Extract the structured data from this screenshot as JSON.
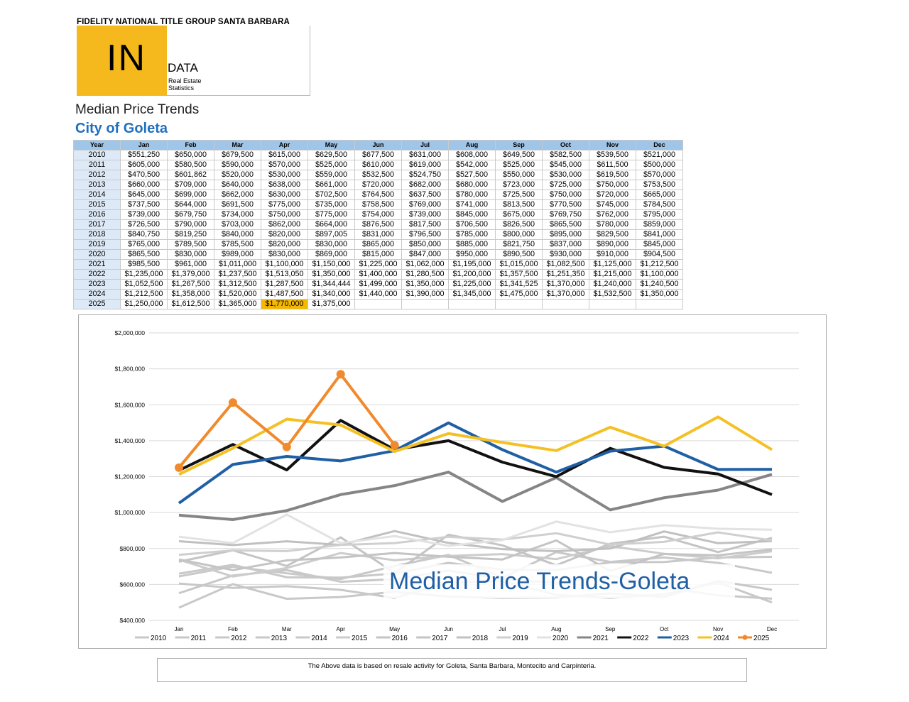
{
  "header": {
    "company": "FIDELITY NATIONAL TITLE GROUP SANTA BARBARA",
    "logo_big": "IN",
    "logo_word": "DATA",
    "logo_line1": "Real Estate",
    "logo_line2": "Statistics",
    "title": "Median Price Trends",
    "subtitle": "City of Goleta"
  },
  "table": {
    "columns": [
      "Year",
      "Jan",
      "Feb",
      "Mar",
      "Apr",
      "May",
      "Jun",
      "Jul",
      "Aug",
      "Sep",
      "Oct",
      "Nov",
      "Dec"
    ],
    "highlight_cell": [
      15,
      4
    ],
    "highlight_color": "#f5b800",
    "rows": [
      [
        "2010",
        "$551,250",
        "$650,000",
        "$679,500",
        "$615,000",
        "$629,500",
        "$677,500",
        "$631,000",
        "$608,000",
        "$649,500",
        "$582,500",
        "$539,500",
        "$521,000"
      ],
      [
        "2011",
        "$605,000",
        "$580,500",
        "$590,000",
        "$570,000",
        "$525,000",
        "$610,000",
        "$619,000",
        "$542,000",
        "$525,000",
        "$545,000",
        "$611,500",
        "$500,000"
      ],
      [
        "2012",
        "$470,500",
        "$601,862",
        "$520,000",
        "$530,000",
        "$559,000",
        "$532,500",
        "$524,750",
        "$527,500",
        "$550,000",
        "$530,000",
        "$619,500",
        "$570,000"
      ],
      [
        "2013",
        "$660,000",
        "$709,000",
        "$640,000",
        "$638,000",
        "$661,000",
        "$720,000",
        "$682,000",
        "$680,000",
        "$723,000",
        "$725,000",
        "$750,000",
        "$753,500"
      ],
      [
        "2014",
        "$645,000",
        "$699,000",
        "$662,000",
        "$630,000",
        "$702,500",
        "$764,500",
        "$637,500",
        "$780,000",
        "$725,500",
        "$750,000",
        "$720,000",
        "$665,000"
      ],
      [
        "2015",
        "$737,500",
        "$644,000",
        "$691,500",
        "$775,000",
        "$735,000",
        "$758,500",
        "$769,000",
        "$741,000",
        "$813,500",
        "$770,500",
        "$745,000",
        "$784,500"
      ],
      [
        "2016",
        "$739,000",
        "$679,750",
        "$734,000",
        "$750,000",
        "$775,000",
        "$754,000",
        "$739,000",
        "$845,000",
        "$675,000",
        "$769,750",
        "$762,000",
        "$795,000"
      ],
      [
        "2017",
        "$726,500",
        "$790,000",
        "$703,000",
        "$862,000",
        "$664,000",
        "$876,500",
        "$817,500",
        "$706,500",
        "$826,500",
        "$865,500",
        "$780,000",
        "$859,000"
      ],
      [
        "2018",
        "$840,750",
        "$819,250",
        "$840,000",
        "$820,000",
        "$897,005",
        "$831,000",
        "$796,500",
        "$785,000",
        "$800,000",
        "$895,000",
        "$829,500",
        "$841,000"
      ],
      [
        "2019",
        "$765,000",
        "$789,500",
        "$785,500",
        "$820,000",
        "$830,000",
        "$865,000",
        "$850,000",
        "$885,000",
        "$821,750",
        "$837,000",
        "$890,000",
        "$845,000"
      ],
      [
        "2020",
        "$865,500",
        "$830,000",
        "$989,000",
        "$830,000",
        "$869,000",
        "$815,000",
        "$847,000",
        "$950,000",
        "$890,500",
        "$930,000",
        "$910,000",
        "$904,500"
      ],
      [
        "2021",
        "$985,500",
        "$961,000",
        "$1,011,000",
        "$1,100,000",
        "$1,150,000",
        "$1,225,000",
        "$1,062,000",
        "$1,195,000",
        "$1,015,000",
        "$1,082,500",
        "$1,125,000",
        "$1,212,500"
      ],
      [
        "2022",
        "$1,235,000",
        "$1,379,000",
        "$1,237,500",
        "$1,513,050",
        "$1,350,000",
        "$1,400,000",
        "$1,280,500",
        "$1,200,000",
        "$1,357,500",
        "$1,251,350",
        "$1,215,000",
        "$1,100,000"
      ],
      [
        "2023",
        "$1,052,500",
        "$1,267,500",
        "$1,312,500",
        "$1,287,500",
        "$1,344,444",
        "$1,499,000",
        "$1,350,000",
        "$1,225,000",
        "$1,341,525",
        "$1,370,000",
        "$1,240,000",
        "$1,240,500"
      ],
      [
        "2024",
        "$1,212,500",
        "$1,358,000",
        "$1,520,000",
        "$1,487,500",
        "$1,340,000",
        "$1,440,000",
        "$1,390,000",
        "$1,345,000",
        "$1,475,000",
        "$1,370,000",
        "$1,532,500",
        "$1,350,000"
      ],
      [
        "2025",
        "$1,250,000",
        "$1,612,500",
        "$1,365,000",
        "$1,770,000",
        "$1,375,000"
      ]
    ]
  },
  "chart_data": {
    "type": "line",
    "annotation": "Median Price Trends-Goleta",
    "categories": [
      "Jan",
      "Feb",
      "Mar",
      "Apr",
      "May",
      "Jun",
      "Jul",
      "Aug",
      "Sep",
      "Oct",
      "Nov",
      "Dec"
    ],
    "ylim": [
      400000,
      2000000
    ],
    "grid": true,
    "yticks": [
      {
        "value": 400000,
        "label": "$400,000"
      },
      {
        "value": 600000,
        "label": "$600,000"
      },
      {
        "value": 800000,
        "label": "$800,000"
      },
      {
        "value": 1000000,
        "label": "$1,000,000"
      },
      {
        "value": 1200000,
        "label": "$1,200,000"
      },
      {
        "value": 1400000,
        "label": "$1,400,000"
      },
      {
        "value": 1600000,
        "label": "$1,600,000"
      },
      {
        "value": 1800000,
        "label": "$1,800,000"
      },
      {
        "value": 2000000,
        "label": "$2,000,000"
      }
    ],
    "legend": "bottom",
    "series": [
      {
        "name": "2010",
        "color": "#c8c8c8",
        "values": [
          551250,
          650000,
          679500,
          615000,
          629500,
          677500,
          631000,
          608000,
          649500,
          582500,
          539500,
          521000
        ]
      },
      {
        "name": "2011",
        "color": "#c8c8c8",
        "values": [
          605000,
          580500,
          590000,
          570000,
          525000,
          610000,
          619000,
          542000,
          525000,
          545000,
          611500,
          500000
        ]
      },
      {
        "name": "2012",
        "color": "#c8c8c8",
        "values": [
          470500,
          601862,
          520000,
          530000,
          559000,
          532500,
          524750,
          527500,
          550000,
          530000,
          619500,
          570000
        ]
      },
      {
        "name": "2013",
        "color": "#c8c8c8",
        "values": [
          660000,
          709000,
          640000,
          638000,
          661000,
          720000,
          682000,
          680000,
          723000,
          725000,
          750000,
          753500
        ]
      },
      {
        "name": "2014",
        "color": "#c8c8c8",
        "values": [
          645000,
          699000,
          662000,
          630000,
          702500,
          764500,
          637500,
          780000,
          725500,
          750000,
          720000,
          665000
        ]
      },
      {
        "name": "2015",
        "color": "#cccccc",
        "values": [
          737500,
          644000,
          691500,
          775000,
          735000,
          758500,
          769000,
          741000,
          813500,
          770500,
          745000,
          784500
        ]
      },
      {
        "name": "2016",
        "color": "#c4c4c4",
        "values": [
          739000,
          679750,
          734000,
          750000,
          775000,
          754000,
          739000,
          845000,
          675000,
          769750,
          762000,
          795000
        ]
      },
      {
        "name": "2017",
        "color": "#c4c4c4",
        "values": [
          726500,
          790000,
          703000,
          862000,
          664000,
          876500,
          817500,
          706500,
          826500,
          865500,
          780000,
          859000
        ]
      },
      {
        "name": "2018",
        "color": "#c0c0c0",
        "values": [
          840750,
          819250,
          840000,
          820000,
          897005,
          831000,
          796500,
          785000,
          800000,
          895000,
          829500,
          841000
        ]
      },
      {
        "name": "2019",
        "color": "#cfcfcf",
        "values": [
          765000,
          789500,
          785500,
          820000,
          830000,
          865000,
          850000,
          885000,
          821750,
          837000,
          890000,
          845000
        ]
      },
      {
        "name": "2020",
        "color": "#e2e2e2",
        "values": [
          865500,
          830000,
          989000,
          830000,
          869000,
          815000,
          847000,
          950000,
          890500,
          930000,
          910000,
          904500
        ]
      },
      {
        "name": "2021",
        "color": "#858585",
        "values": [
          985500,
          961000,
          1011000,
          1100000,
          1150000,
          1225000,
          1062000,
          1195000,
          1015000,
          1082500,
          1125000,
          1212500
        ]
      },
      {
        "name": "2022",
        "color": "#111111",
        "values": [
          1235000,
          1379000,
          1237500,
          1513050,
          1350000,
          1400000,
          1280500,
          1200000,
          1357500,
          1251350,
          1215000,
          1100000
        ]
      },
      {
        "name": "2023",
        "color": "#1f5fa5",
        "values": [
          1052500,
          1267500,
          1312500,
          1287500,
          1344444,
          1499000,
          1350000,
          1225000,
          1341525,
          1370000,
          1240000,
          1240500
        ]
      },
      {
        "name": "2024",
        "color": "#f5c024",
        "values": [
          1212500,
          1358000,
          1520000,
          1487500,
          1340000,
          1440000,
          1390000,
          1345000,
          1475000,
          1370000,
          1532500,
          1350000
        ]
      },
      {
        "name": "2025",
        "color": "#f08a2c",
        "markers": true,
        "values": [
          1250000,
          1612500,
          1365000,
          1770000,
          1375000,
          null,
          null,
          null,
          null,
          null,
          null,
          null
        ]
      }
    ]
  },
  "footnote": "The Above data is based on resale activity for Goleta, Santa Barbara, Montecito and Carpinteria."
}
